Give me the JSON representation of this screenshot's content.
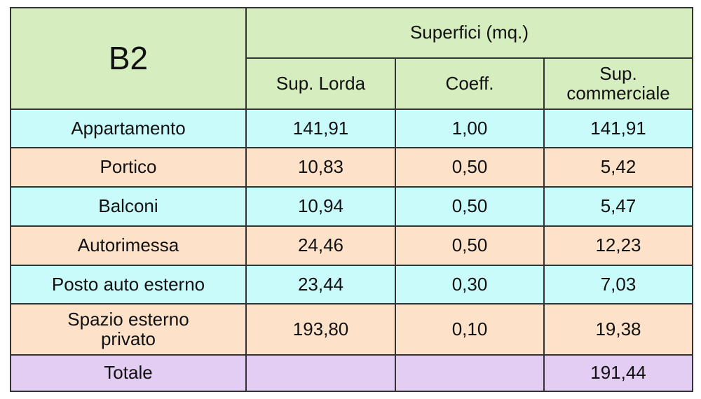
{
  "table": {
    "corner": "B2",
    "group_header": "Superfici (mq.)",
    "columns": [
      "Sup. Lorda",
      "Coeff.",
      "Sup. commerciale"
    ],
    "rows": [
      [
        "Appartamento",
        "141,91",
        "1,00",
        "141,91"
      ],
      [
        "Portico",
        "10,83",
        "0,50",
        "5,42"
      ],
      [
        "Balconi",
        "10,94",
        "0,50",
        "5,47"
      ],
      [
        "Autorimessa",
        "24,46",
        "0,50",
        "12,23"
      ],
      [
        "Posto auto esterno",
        "23,44",
        "0,30",
        "7,03"
      ],
      [
        "Spazio esterno privato",
        "193,80",
        "0,10",
        "19,38"
      ]
    ],
    "total": {
      "label": "Totale",
      "value": "191,44"
    }
  }
}
